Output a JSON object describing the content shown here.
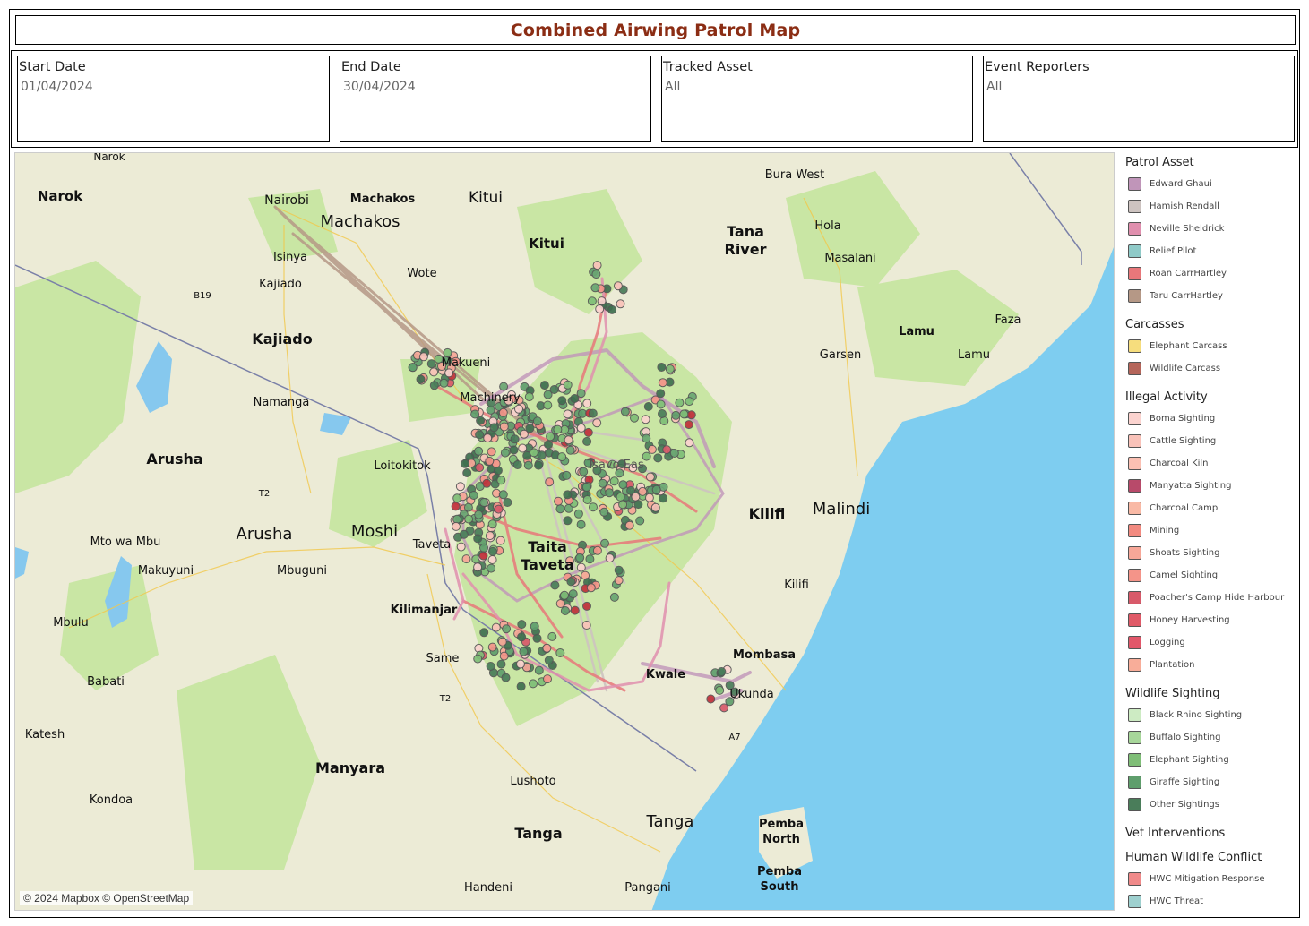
{
  "title": "Combined Airwing Patrol Map",
  "filters": [
    {
      "label": "Start Date",
      "value": "01/04/2024"
    },
    {
      "label": "End Date",
      "value": "30/04/2024"
    },
    {
      "label": "Tracked Asset",
      "value": "All"
    },
    {
      "label": "Event Reporters",
      "value": "All"
    }
  ],
  "map": {
    "attribution": "© 2024 Mapbox © OpenStreetMap",
    "colors": {
      "land": "#ecebd6",
      "park": "#c9e6a4",
      "water": "#7ecdf0",
      "lake": "#86c8ee"
    },
    "places": {
      "narok_county": "Narok",
      "narok_town": "Narok",
      "nairobi": "Nairobi",
      "machakos_county": "Machakos",
      "machakos_town": "Machakos",
      "kitui_town": "Kitui",
      "kitui_county": "Kitui",
      "bura_west": "Bura West",
      "tana": "Tana",
      "river": "River",
      "hola": "Hola",
      "masalani": "Masalani",
      "isinya": "Isinya",
      "kajiado_town": "Kajiado",
      "kajiado_county": "Kajiado",
      "wote": "Wote",
      "b19": "B19",
      "lamu_county": "Lamu",
      "lamu_town": "Lamu",
      "faza": "Faza",
      "garsen": "Garsen",
      "makueni": "Makueni",
      "machinery": "Machinery",
      "namanga": "Namanga",
      "arusha_region": "Arusha",
      "arusha_city": "Arusha",
      "loitokitok": "Loitokitok",
      "t2_a": "T2",
      "t2_b": "T2",
      "tsavo": "Tsavo Eas",
      "taita": "Taita",
      "taveta_county": "Taveta",
      "taveta_town": "Taveta",
      "moshi": "Moshi",
      "kilifi_county": "Kilifi",
      "kilifi_town": "Kilifi",
      "malindi": "Malindi",
      "mto_wa_mbu": "Mto wa Mbu",
      "makuyuni": "Makuyuni",
      "mbuguni": "Mbuguni",
      "kilimanjaro": "Kilimanjar",
      "mbulu": "Mbulu",
      "same": "Same",
      "mombasa": "Mombasa",
      "kwale": "Kwale",
      "ukunda": "Ukunda",
      "a7": "A7",
      "babati": "Babati",
      "katesh": "Katesh",
      "manyara": "Manyara",
      "lushoto": "Lushoto",
      "kondoa": "Kondoa",
      "tanga_city": "Tanga",
      "tanga_region": "Tanga",
      "pemba_n1": "Pemba",
      "pemba_n2": "North",
      "pemba_s1": "Pemba",
      "pemba_s2": "South",
      "handeni": "Handeni",
      "pangani": "Pangani"
    }
  },
  "legend": [
    {
      "title": "Patrol Asset",
      "items": [
        {
          "label": "Edward Ghaui",
          "color": "#c095b9"
        },
        {
          "label": "Hamish Rendall",
          "color": "#cdc3c0"
        },
        {
          "label": "Neville Sheldrick",
          "color": "#e08fae"
        },
        {
          "label": "Relief Pilot",
          "color": "#8fcac8"
        },
        {
          "label": "Roan CarrHartley",
          "color": "#e8777a"
        },
        {
          "label": "Taru CarrHartley",
          "color": "#b59886"
        }
      ]
    },
    {
      "title": "Carcasses",
      "items": [
        {
          "label": "Elephant Carcass",
          "color": "#f6dd7d"
        },
        {
          "label": "Wildlife Carcass",
          "color": "#b5655a"
        }
      ]
    },
    {
      "title": "Illegal Activity",
      "items": [
        {
          "label": "Boma Sighting",
          "color": "#fbd3cf"
        },
        {
          "label": "Cattle Sighting",
          "color": "#f9c2b9"
        },
        {
          "label": "Charcoal Kiln",
          "color": "#fbc0b3"
        },
        {
          "label": "Manyatta Sighting",
          "color": "#b84a6a"
        },
        {
          "label": "Charcoal Camp",
          "color": "#f9b9a5"
        },
        {
          "label": "Mining",
          "color": "#f28a80"
        },
        {
          "label": "Shoats Sighting",
          "color": "#f7a798"
        },
        {
          "label": "Camel Sighting",
          "color": "#f49489"
        },
        {
          "label": "Poacher's Camp Hide Harbour",
          "color": "#d85a6a"
        },
        {
          "label": "Honey Harvesting",
          "color": "#e05a68"
        },
        {
          "label": "Logging",
          "color": "#e2576a"
        },
        {
          "label": "Plantation",
          "color": "#f8ad99"
        }
      ]
    },
    {
      "title": "Wildlife Sighting",
      "items": [
        {
          "label": "Black Rhino Sighting",
          "color": "#cdebc3"
        },
        {
          "label": "Buffalo Sighting",
          "color": "#a7d69a"
        },
        {
          "label": "Elephant Sighting",
          "color": "#7fbe77"
        },
        {
          "label": "Giraffe Sighting",
          "color": "#5f9e6c"
        },
        {
          "label": "Other Sightings",
          "color": "#4a7d5a"
        }
      ]
    },
    {
      "title": "Vet Interventions",
      "items": []
    },
    {
      "title": "Human Wildlife Conflict",
      "items": [
        {
          "label": "HWC Mitigation Response",
          "color": "#f08a8a"
        },
        {
          "label": "HWC Threat",
          "color": "#9ed0cf"
        }
      ]
    }
  ]
}
